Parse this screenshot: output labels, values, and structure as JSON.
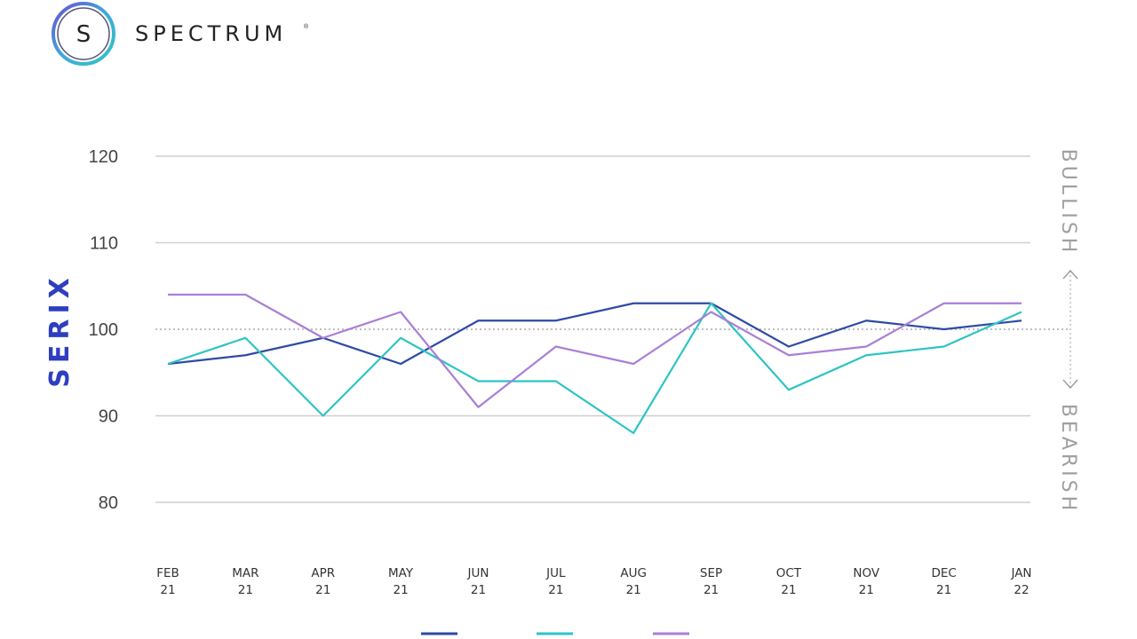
{
  "brand": {
    "name": "SPECTRUM",
    "registered": "®",
    "mark_letter": "S"
  },
  "colors": {
    "series_1": "#2e4aa6",
    "series_2": "#2ec4c4",
    "series_3": "#a97fd6",
    "grid": "#cfcfcf",
    "axis_label": "#2d3fbf",
    "side_label": "#a0a0a0"
  },
  "chart_data": {
    "type": "line",
    "title": "",
    "ylabel": "SERIX",
    "xlabel": "",
    "ylim": [
      80,
      120
    ],
    "yticks": [
      120,
      110,
      100,
      90,
      80
    ],
    "reference_line": 100,
    "grid": true,
    "side_labels": {
      "upper": "BULLISH",
      "lower": "BEARISH"
    },
    "categories": [
      [
        "FEB",
        "21"
      ],
      [
        "MAR",
        "21"
      ],
      [
        "APR",
        "21"
      ],
      [
        "MAY",
        "21"
      ],
      [
        "JUN",
        "21"
      ],
      [
        "JUL",
        "21"
      ],
      [
        "AUG",
        "21"
      ],
      [
        "SEP",
        "21"
      ],
      [
        "OCT",
        "21"
      ],
      [
        "NOV",
        "21"
      ],
      [
        "DEC",
        "21"
      ],
      [
        "JAN",
        "22"
      ]
    ],
    "series": [
      {
        "color": "#2e4aa6",
        "values": [
          96,
          97,
          99,
          96,
          101,
          101,
          103,
          103,
          98,
          101,
          100,
          101
        ]
      },
      {
        "color": "#2ec4c4",
        "values": [
          96,
          99,
          90,
          99,
          94,
          94,
          88,
          103,
          93,
          97,
          98,
          102
        ]
      },
      {
        "color": "#a97fd6",
        "values": [
          104,
          104,
          99,
          102,
          91,
          98,
          96,
          102,
          97,
          98,
          103,
          103
        ]
      }
    ],
    "legend_placement": "bottom"
  }
}
